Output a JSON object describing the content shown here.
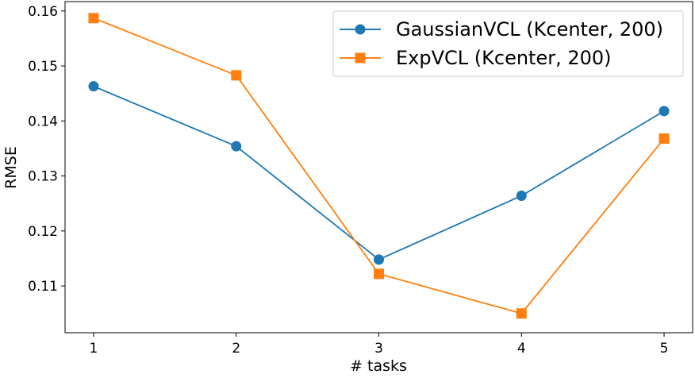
{
  "chart_data": {
    "type": "line",
    "title": "",
    "xlabel": "# tasks",
    "ylabel": "RMSE",
    "x": [
      1,
      2,
      3,
      4,
      5
    ],
    "xlim": [
      0.8,
      5.2
    ],
    "ylim": [
      0.1015,
      0.1617
    ],
    "xticks": [
      "1",
      "2",
      "3",
      "4",
      "5"
    ],
    "yticks": [
      "0.11",
      "0.12",
      "0.13",
      "0.14",
      "0.15",
      "0.16"
    ],
    "yticks_values": [
      0.11,
      0.12,
      0.13,
      0.14,
      0.15,
      0.16
    ],
    "grid": false,
    "legend_position": "top-right",
    "series": [
      {
        "name": "GaussianVCL (Kcenter, 200)",
        "values": [
          0.1463,
          0.1354,
          0.1148,
          0.1264,
          0.1418
        ],
        "color": "#1f77b4",
        "marker": "circle"
      },
      {
        "name": "ExpVCL (Kcenter, 200)",
        "values": [
          0.1587,
          0.1483,
          0.1122,
          0.105,
          0.1368
        ],
        "color": "#ff7f0e",
        "marker": "square"
      }
    ]
  }
}
